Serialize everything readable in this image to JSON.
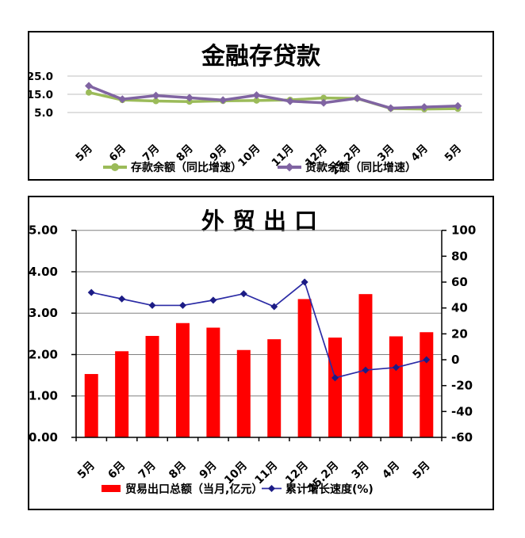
{
  "page": {
    "background": "#ffffff",
    "border_color": "#000000"
  },
  "chart_data": [
    {
      "id": "deposit-loan",
      "type": "line",
      "title": "金融存贷款",
      "categories": [
        "5月",
        "6月",
        "7月",
        "8月",
        "9月",
        "10月",
        "11月",
        "12月",
        "25.2月",
        "3月",
        "4月",
        "5月"
      ],
      "series": [
        {
          "name": "存款余额（同比增速）",
          "color": "#9BBB59",
          "marker": "circle",
          "values": [
            16.0,
            11.9,
            11.3,
            11.0,
            11.4,
            11.6,
            11.9,
            13.0,
            12.7,
            7.2,
            6.9,
            7.1
          ]
        },
        {
          "name": "贷款余额（同比增速）",
          "color": "#8064A2",
          "marker": "diamond",
          "values": [
            19.6,
            12.3,
            14.3,
            13.1,
            11.8,
            14.5,
            11.2,
            10.3,
            12.8,
            7.4,
            8.0,
            8.6
          ]
        }
      ],
      "ylabel": "",
      "xlabel": "",
      "y_ticks": [
        25.0,
        15.0,
        5.0
      ],
      "y_tick_labels": [
        "25.0",
        "15.0",
        "5.0"
      ],
      "ylim": [
        5,
        25
      ],
      "grid": true,
      "grid_color": "#BFBFBF",
      "legend_position": "bottom"
    },
    {
      "id": "foreign-trade",
      "type": "bar+line",
      "title": "外 贸 出 口",
      "categories": [
        "5月",
        "6月",
        "7月",
        "8月",
        "9月",
        "10月",
        "11月",
        "12月",
        "25.2月",
        "3月",
        "4月",
        "5月"
      ],
      "series": [
        {
          "name": "贸易出口总额（当月,亿元）",
          "kind": "bar",
          "axis": "left",
          "color": "#FF0000",
          "values": [
            1.53,
            2.08,
            2.45,
            2.76,
            2.65,
            2.11,
            2.37,
            3.34,
            2.41,
            3.46,
            2.44,
            2.54
          ]
        },
        {
          "name": "累计增长速度(%)",
          "kind": "line",
          "axis": "right",
          "color": "#2B2BA5",
          "marker": "diamond",
          "marker_color": "#1C1C85",
          "values": [
            52,
            47,
            42,
            42,
            46,
            51,
            41,
            60,
            -14,
            -8,
            -6,
            0
          ]
        }
      ],
      "left_axis": {
        "min": 0,
        "max": 5,
        "tick_labels": [
          "0.00",
          "1.00",
          "2.00",
          "3.00",
          "4.00",
          "5.00"
        ]
      },
      "right_axis": {
        "min": -60,
        "max": 100,
        "tick_labels": [
          "100",
          "80",
          "60",
          "40",
          "20",
          "0",
          "-20",
          "-40",
          "-60"
        ]
      },
      "grid": true,
      "grid_color": "#808080",
      "axis_color": "#000000",
      "legend_position": "bottom"
    }
  ]
}
